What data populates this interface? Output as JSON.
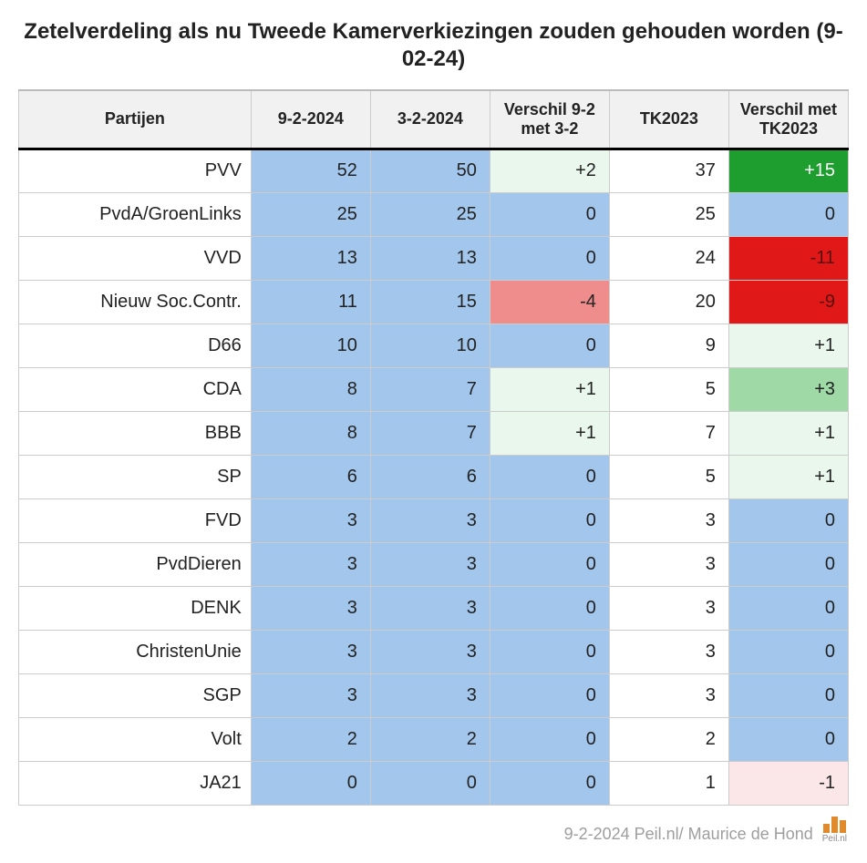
{
  "title": "Zetelverdeling als nu Tweede Kamerverkiezingen zouden gehouden worden (9-02-24)",
  "footer": "9-2-2024 Peil.nl/ Maurice de Hond",
  "logo_text": "Peil.nl",
  "columns": [
    "Partijen",
    "9-2-2024",
    "3-2-2024",
    "Verschil 9-2 met 3-2",
    "TK2023",
    "Verschil met TK2023"
  ],
  "palette": {
    "blue": "#a3c6ec",
    "green_light": "#eaf7ed",
    "green_mid": "#9fd9a6",
    "green_dark": "#1e9e2f",
    "red_light": "#fbe7e7",
    "red_mid": "#ef8d8d",
    "red_dark": "#e11818",
    "header_bg": "#f1f1f1",
    "border": "#cccccc",
    "white": "#ffffff",
    "text": "#222222",
    "text_dark_diff": "#5a1010"
  },
  "rows": [
    {
      "party": "PVV",
      "cells": [
        {
          "text": "52",
          "bg": "blue"
        },
        {
          "text": "50",
          "bg": "blue"
        },
        {
          "text": "+2",
          "bg": "green_light"
        },
        {
          "text": "37",
          "bg": "white"
        },
        {
          "text": "+15",
          "bg": "green_dark",
          "fg": "white"
        }
      ]
    },
    {
      "party": "PvdA/GroenLinks",
      "cells": [
        {
          "text": "25",
          "bg": "blue"
        },
        {
          "text": "25",
          "bg": "blue"
        },
        {
          "text": "0",
          "bg": "blue"
        },
        {
          "text": "25",
          "bg": "white"
        },
        {
          "text": "0",
          "bg": "blue"
        }
      ]
    },
    {
      "party": "VVD",
      "cells": [
        {
          "text": "13",
          "bg": "blue"
        },
        {
          "text": "13",
          "bg": "blue"
        },
        {
          "text": "0",
          "bg": "blue"
        },
        {
          "text": "24",
          "bg": "white"
        },
        {
          "text": "-11",
          "bg": "red_dark",
          "fg": "text_dark_diff"
        }
      ]
    },
    {
      "party": "Nieuw Soc.Contr.",
      "cells": [
        {
          "text": "11",
          "bg": "blue"
        },
        {
          "text": "15",
          "bg": "blue"
        },
        {
          "text": "-4",
          "bg": "red_mid"
        },
        {
          "text": "20",
          "bg": "white"
        },
        {
          "text": "-9",
          "bg": "red_dark",
          "fg": "text_dark_diff"
        }
      ]
    },
    {
      "party": "D66",
      "cells": [
        {
          "text": "10",
          "bg": "blue"
        },
        {
          "text": "10",
          "bg": "blue"
        },
        {
          "text": "0",
          "bg": "blue"
        },
        {
          "text": "9",
          "bg": "white"
        },
        {
          "text": "+1",
          "bg": "green_light"
        }
      ]
    },
    {
      "party": "CDA",
      "cells": [
        {
          "text": "8",
          "bg": "blue"
        },
        {
          "text": "7",
          "bg": "blue"
        },
        {
          "text": "+1",
          "bg": "green_light"
        },
        {
          "text": "5",
          "bg": "white"
        },
        {
          "text": "+3",
          "bg": "green_mid"
        }
      ]
    },
    {
      "party": "BBB",
      "cells": [
        {
          "text": "8",
          "bg": "blue"
        },
        {
          "text": "7",
          "bg": "blue"
        },
        {
          "text": "+1",
          "bg": "green_light"
        },
        {
          "text": "7",
          "bg": "white"
        },
        {
          "text": "+1",
          "bg": "green_light"
        }
      ]
    },
    {
      "party": "SP",
      "cells": [
        {
          "text": "6",
          "bg": "blue"
        },
        {
          "text": "6",
          "bg": "blue"
        },
        {
          "text": "0",
          "bg": "blue"
        },
        {
          "text": "5",
          "bg": "white"
        },
        {
          "text": "+1",
          "bg": "green_light"
        }
      ]
    },
    {
      "party": "FVD",
      "cells": [
        {
          "text": "3",
          "bg": "blue"
        },
        {
          "text": "3",
          "bg": "blue"
        },
        {
          "text": "0",
          "bg": "blue"
        },
        {
          "text": "3",
          "bg": "white"
        },
        {
          "text": "0",
          "bg": "blue"
        }
      ]
    },
    {
      "party": "PvdDieren",
      "cells": [
        {
          "text": "3",
          "bg": "blue"
        },
        {
          "text": "3",
          "bg": "blue"
        },
        {
          "text": "0",
          "bg": "blue"
        },
        {
          "text": "3",
          "bg": "white"
        },
        {
          "text": "0",
          "bg": "blue"
        }
      ]
    },
    {
      "party": "DENK",
      "cells": [
        {
          "text": "3",
          "bg": "blue"
        },
        {
          "text": "3",
          "bg": "blue"
        },
        {
          "text": "0",
          "bg": "blue"
        },
        {
          "text": "3",
          "bg": "white"
        },
        {
          "text": "0",
          "bg": "blue"
        }
      ]
    },
    {
      "party": "ChristenUnie",
      "cells": [
        {
          "text": "3",
          "bg": "blue"
        },
        {
          "text": "3",
          "bg": "blue"
        },
        {
          "text": "0",
          "bg": "blue"
        },
        {
          "text": "3",
          "bg": "white"
        },
        {
          "text": "0",
          "bg": "blue"
        }
      ]
    },
    {
      "party": "SGP",
      "cells": [
        {
          "text": "3",
          "bg": "blue"
        },
        {
          "text": "3",
          "bg": "blue"
        },
        {
          "text": "0",
          "bg": "blue"
        },
        {
          "text": "3",
          "bg": "white"
        },
        {
          "text": "0",
          "bg": "blue"
        }
      ]
    },
    {
      "party": "Volt",
      "cells": [
        {
          "text": "2",
          "bg": "blue"
        },
        {
          "text": "2",
          "bg": "blue"
        },
        {
          "text": "0",
          "bg": "blue"
        },
        {
          "text": "2",
          "bg": "white"
        },
        {
          "text": "0",
          "bg": "blue"
        }
      ]
    },
    {
      "party": "JA21",
      "cells": [
        {
          "text": "0",
          "bg": "blue"
        },
        {
          "text": "0",
          "bg": "blue"
        },
        {
          "text": "0",
          "bg": "blue"
        },
        {
          "text": "1",
          "bg": "white"
        },
        {
          "text": "-1",
          "bg": "red_light"
        }
      ]
    }
  ]
}
